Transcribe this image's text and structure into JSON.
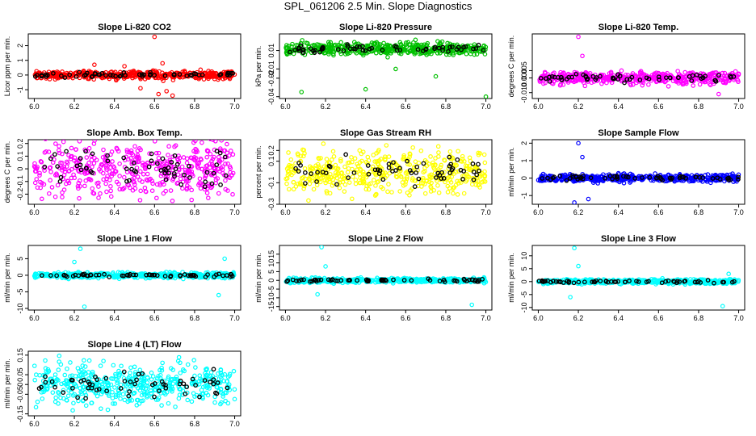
{
  "title": "SPL_061206  2.5 Min. Slope Diagnostics",
  "chart_data": [
    {
      "type": "scatter",
      "title": "Slope Li-820 CO2",
      "ylabel": "Licor ppm per min.",
      "xlim": [
        5.97,
        7.03
      ],
      "ylim": [
        -1.6,
        2.8
      ],
      "xticks": [
        "6.0",
        "6.2",
        "6.4",
        "6.6",
        "6.8",
        "7.0"
      ],
      "yticks": [
        -1,
        0,
        1,
        2
      ],
      "color": "#ff0000",
      "spread": 0.25,
      "outliers": [
        [
          6.53,
          -0.9
        ],
        [
          6.6,
          2.6
        ],
        [
          6.62,
          -1.3
        ],
        [
          6.64,
          0.8
        ],
        [
          6.66,
          -1.1
        ],
        [
          6.69,
          -1.4
        ],
        [
          6.3,
          0.7
        ],
        [
          6.45,
          0.6
        ]
      ]
    },
    {
      "type": "scatter",
      "title": "Slope Li-820 Pressure",
      "ylabel": "kPa per min.",
      "xlim": [
        5.97,
        7.03
      ],
      "ylim": [
        -0.042,
        0.028
      ],
      "xticks": [
        "6.0",
        "6.2",
        "6.4",
        "6.6",
        "6.8",
        "7.0"
      ],
      "yticks": [
        -0.04,
        -0.02,
        -0.01,
        0.01
      ],
      "ytick_labels": [
        "-0.04",
        "-0.02",
        "-0.01",
        "0.01"
      ],
      "color": "#00c000",
      "spread": 0.006,
      "offset": 0.012,
      "outliers": [
        [
          6.08,
          -0.035
        ],
        [
          6.4,
          -0.032
        ],
        [
          7.0,
          -0.04
        ],
        [
          6.55,
          -0.01
        ],
        [
          6.75,
          -0.018
        ]
      ]
    },
    {
      "type": "scatter",
      "title": "Slope Li-820 Temp.",
      "ylabel": "degrees C per min.",
      "xlim": [
        5.97,
        7.03
      ],
      "ylim": [
        -0.014,
        0.03
      ],
      "xticks": [
        "6.0",
        "6.2",
        "6.4",
        "6.6",
        "6.8",
        "7.0"
      ],
      "yticks": [
        -0.01,
        0,
        0.005
      ],
      "ytick_labels": [
        "-0.010",
        "0.000",
        "0.005"
      ],
      "color": "#ff00ff",
      "spread": 0.004,
      "outliers": [
        [
          6.2,
          0.028
        ],
        [
          6.22,
          0.015
        ],
        [
          6.9,
          -0.011
        ]
      ]
    },
    {
      "type": "scatter",
      "title": "Slope Amb. Box Temp.",
      "ylabel": "degrees C per min.",
      "xlim": [
        5.97,
        7.03
      ],
      "ylim": [
        -0.28,
        0.23
      ],
      "xticks": [
        "6.0",
        "6.2",
        "6.4",
        "6.6",
        "6.8",
        "7.0"
      ],
      "yticks": [
        -0.2,
        -0.1,
        0,
        0.1,
        0.2
      ],
      "color": "#ff00ff",
      "spread": 0.2,
      "outliers": []
    },
    {
      "type": "scatter",
      "title": "Slope Gas Stream RH",
      "ylabel": "percent per min.",
      "xlim": [
        5.97,
        7.03
      ],
      "ylim": [
        -0.3,
        0.3
      ],
      "xticks": [
        "6.0",
        "6.2",
        "6.4",
        "6.6",
        "6.8",
        "7.0"
      ],
      "yticks": [
        -0.3,
        -0.1,
        0.1,
        0.2
      ],
      "color": "#ffff00",
      "spread": 0.2,
      "outliers": []
    },
    {
      "type": "scatter",
      "title": "Slope Sample Flow",
      "ylabel": "ml/min per min.",
      "xlim": [
        5.97,
        7.03
      ],
      "ylim": [
        -1.5,
        2.2
      ],
      "xticks": [
        "6.0",
        "6.2",
        "6.4",
        "6.6",
        "6.8",
        "7.0"
      ],
      "yticks": [
        -1,
        0,
        1,
        2
      ],
      "color": "#0000ff",
      "spread": 0.2,
      "outliers": [
        [
          6.2,
          2.0
        ],
        [
          6.22,
          1.2
        ],
        [
          6.25,
          -1.2
        ],
        [
          6.18,
          -1.4
        ]
      ]
    },
    {
      "type": "scatter",
      "title": "Slope Line 1 Flow",
      "ylabel": "ml/min per min.",
      "xlim": [
        5.97,
        7.03
      ],
      "ylim": [
        -10.5,
        9
      ],
      "xticks": [
        "6.0",
        "6.2",
        "6.4",
        "6.6",
        "6.8",
        "7.0"
      ],
      "yticks": [
        -10,
        -5,
        0,
        5
      ],
      "color": "#00ffff",
      "spread": 0.8,
      "outliers": [
        [
          6.23,
          8
        ],
        [
          6.25,
          -9.5
        ],
        [
          6.2,
          4
        ],
        [
          6.92,
          -6
        ],
        [
          6.95,
          5
        ]
      ]
    },
    {
      "type": "scatter",
      "title": "Slope Line 2 Flow",
      "ylabel": "ml/min per min.",
      "xlim": [
        5.97,
        7.03
      ],
      "ylim": [
        -17,
        20
      ],
      "xticks": [
        "6.0",
        "6.2",
        "6.4",
        "6.6",
        "6.8",
        "7.0"
      ],
      "yticks": [
        -15,
        -10,
        -5,
        0,
        5,
        10,
        15
      ],
      "color": "#00ffff",
      "spread": 1.2,
      "outliers": [
        [
          6.18,
          19
        ],
        [
          6.2,
          8
        ],
        [
          6.16,
          -8
        ],
        [
          6.93,
          -14
        ]
      ]
    },
    {
      "type": "scatter",
      "title": "Slope Line 3 Flow",
      "ylabel": "ml/min per min.",
      "xlim": [
        5.97,
        7.03
      ],
      "ylim": [
        -11,
        14
      ],
      "xticks": [
        "6.0",
        "6.2",
        "6.4",
        "6.6",
        "6.8",
        "7.0"
      ],
      "yticks": [
        -10,
        -5,
        0,
        5,
        10
      ],
      "color": "#00ffff",
      "spread": 0.8,
      "outliers": [
        [
          6.18,
          13
        ],
        [
          6.2,
          6
        ],
        [
          6.16,
          -6
        ],
        [
          6.92,
          -9.5
        ],
        [
          6.95,
          3
        ]
      ]
    },
    {
      "type": "scatter",
      "title": "Slope Line 4 (LT) Flow",
      "ylabel": "ml/min per min.",
      "xlim": [
        5.97,
        7.03
      ],
      "ylim": [
        -0.16,
        0.17
      ],
      "xticks": [
        "6.0",
        "6.2",
        "6.4",
        "6.6",
        "6.8",
        "7.0"
      ],
      "yticks": [
        -0.15,
        -0.05,
        0,
        0.05,
        0.15
      ],
      "color": "#00ffff",
      "spread": 0.1,
      "outliers": []
    }
  ]
}
